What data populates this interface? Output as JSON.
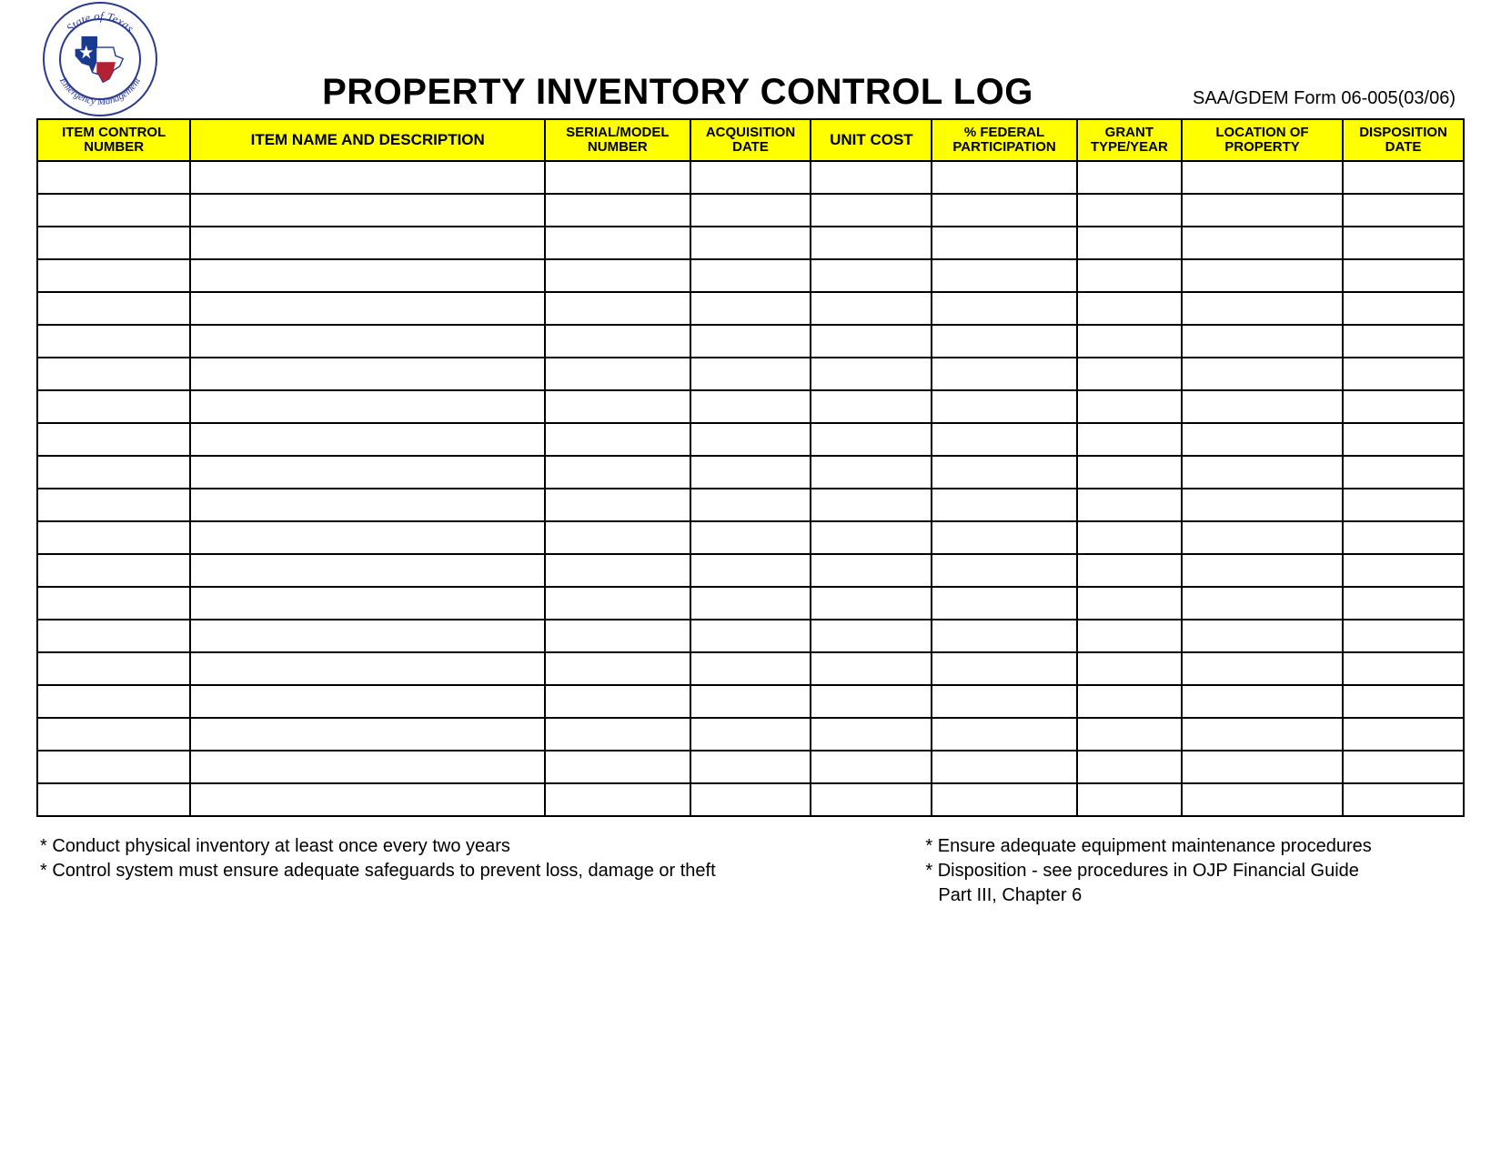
{
  "header": {
    "title": "PROPERTY INVENTORY CONTROL LOG",
    "form_id": "SAA/GDEM Form 06-005(03/06)",
    "logo": {
      "outer_text_top": "State of Texas",
      "outer_text_bottom": "Emergency Management",
      "ring_color": "#2a3a8f",
      "text_color": "#2a3a8f",
      "flag_blue": "#1a3a8f",
      "flag_red": "#b22234",
      "flag_white": "#ffffff",
      "star_color": "#ffffff"
    }
  },
  "table": {
    "header_bg": "#ffff00",
    "border_color": "#000000",
    "row_count": 20,
    "columns": [
      {
        "label_l1": "ITEM CONTROL",
        "label_l2": "NUMBER",
        "width": "9.5%"
      },
      {
        "label_l1": "ITEM NAME AND DESCRIPTION",
        "label_l2": "",
        "width": "22%",
        "class": "desc"
      },
      {
        "label_l1": "SERIAL/MODEL",
        "label_l2": "NUMBER",
        "width": "9%"
      },
      {
        "label_l1": "ACQUISITION",
        "label_l2": "DATE",
        "width": "7.5%"
      },
      {
        "label_l1": "UNIT COST",
        "label_l2": "",
        "width": "7.5%",
        "class": "unit"
      },
      {
        "label_l1": "% FEDERAL",
        "label_l2": "PARTICIPATION",
        "width": "9%"
      },
      {
        "label_l1": "GRANT",
        "label_l2": "TYPE/YEAR",
        "width": "6.5%"
      },
      {
        "label_l1": "LOCATION OF",
        "label_l2": "PROPERTY",
        "width": "10%"
      },
      {
        "label_l1": "DISPOSITION",
        "label_l2": "DATE",
        "width": "7.5%"
      }
    ]
  },
  "footnotes": {
    "left": [
      "* Conduct physical inventory at least once every two years",
      "* Control system must ensure adequate safeguards to prevent loss, damage or theft"
    ],
    "right": [
      "* Ensure adequate equipment maintenance procedures",
      "* Disposition - see procedures in OJP Financial Guide",
      "  Part III, Chapter 6"
    ]
  }
}
